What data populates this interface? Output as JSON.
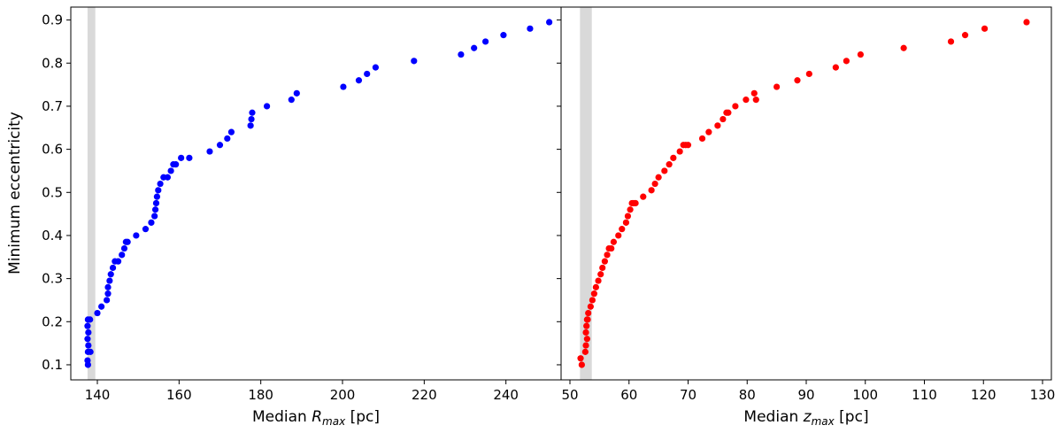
{
  "ylabel": "Minimum eccentricity",
  "chart_data": [
    {
      "type": "scatter",
      "xlabel_prefix": "Median ",
      "xlabel_symbol": "R",
      "xlabel_subscript": "max",
      "xlabel_suffix": " [pc]",
      "ylabel": "Minimum eccentricity",
      "xlim": [
        133.5,
        253.5
      ],
      "ylim": [
        0.065,
        0.93
      ],
      "xticks": [
        140,
        160,
        180,
        200,
        220,
        240
      ],
      "yticks": [
        0.1,
        0.2,
        0.3,
        0.4,
        0.5,
        0.6,
        0.7,
        0.8,
        0.9
      ],
      "band": [
        137.6,
        139.5
      ],
      "band_color": "#d9d9d9",
      "marker_color": "#0000ff",
      "grid": false,
      "x": [
        137.7,
        137.6,
        137.7,
        138.3,
        137.8,
        137.6,
        137.8,
        137.6,
        137.7,
        138.2,
        140.0,
        141.0,
        142.3,
        142.6,
        142.6,
        143.0,
        143.3,
        143.8,
        144.3,
        145.1,
        146.0,
        146.6,
        147.0,
        147.4,
        149.5,
        151.8,
        153.2,
        154.0,
        154.2,
        154.4,
        154.6,
        154.9,
        155.4,
        156.2,
        157.2,
        158.0,
        158.6,
        159.2,
        160.5,
        162.5,
        167.5,
        170.0,
        171.8,
        172.8,
        177.5,
        177.7,
        177.9,
        181.5,
        187.5,
        188.8,
        200.2,
        204.0,
        206.0,
        208.1,
        217.5,
        229.0,
        232.2,
        235.0,
        239.4,
        245.9,
        250.6
      ],
      "y": [
        0.1,
        0.11,
        0.13,
        0.13,
        0.145,
        0.16,
        0.175,
        0.19,
        0.205,
        0.205,
        0.22,
        0.235,
        0.25,
        0.265,
        0.28,
        0.295,
        0.31,
        0.325,
        0.34,
        0.34,
        0.355,
        0.37,
        0.385,
        0.385,
        0.4,
        0.415,
        0.43,
        0.445,
        0.46,
        0.475,
        0.49,
        0.505,
        0.52,
        0.535,
        0.535,
        0.55,
        0.565,
        0.565,
        0.58,
        0.58,
        0.595,
        0.61,
        0.625,
        0.64,
        0.655,
        0.67,
        0.685,
        0.7,
        0.715,
        0.73,
        0.745,
        0.76,
        0.775,
        0.79,
        0.805,
        0.82,
        0.835,
        0.85,
        0.865,
        0.88,
        0.895
      ]
    },
    {
      "type": "scatter",
      "xlabel_prefix": "Median ",
      "xlabel_symbol": "z",
      "xlabel_subscript": "max",
      "xlabel_suffix": " [pc]",
      "ylabel": "",
      "xlim": [
        48.5,
        131.5
      ],
      "ylim": [
        0.065,
        0.93
      ],
      "xticks": [
        50,
        60,
        70,
        80,
        90,
        100,
        110,
        120,
        130
      ],
      "yticks": [
        0.1,
        0.2,
        0.3,
        0.4,
        0.5,
        0.6,
        0.7,
        0.8,
        0.9
      ],
      "band": [
        51.7,
        53.7
      ],
      "band_color": "#d9d9d9",
      "marker_color": "#ff0000",
      "grid": false,
      "x": [
        52.0,
        51.8,
        52.6,
        52.7,
        52.9,
        52.7,
        52.8,
        52.9,
        53.0,
        53.1,
        53.5,
        53.8,
        54.1,
        54.4,
        54.8,
        55.2,
        55.5,
        55.9,
        56.3,
        56.6,
        57.0,
        57.4,
        58.2,
        58.8,
        59.5,
        59.8,
        60.2,
        60.5,
        60.7,
        61.0,
        61.1,
        62.4,
        63.8,
        64.4,
        65.0,
        66.0,
        66.8,
        67.5,
        68.6,
        69.2,
        69.6,
        70.0,
        72.4,
        73.5,
        75.0,
        75.9,
        76.5,
        76.8,
        78.0,
        79.8,
        81.5,
        81.2,
        85.0,
        88.5,
        90.5,
        95.0,
        96.8,
        99.2,
        106.5,
        114.5,
        116.9,
        120.2,
        127.3
      ],
      "y": [
        0.1,
        0.115,
        0.13,
        0.145,
        0.16,
        0.175,
        0.19,
        0.205,
        0.205,
        0.22,
        0.235,
        0.25,
        0.265,
        0.28,
        0.295,
        0.31,
        0.325,
        0.34,
        0.355,
        0.37,
        0.37,
        0.385,
        0.4,
        0.415,
        0.43,
        0.445,
        0.46,
        0.475,
        0.475,
        0.475,
        0.475,
        0.49,
        0.505,
        0.52,
        0.535,
        0.55,
        0.565,
        0.58,
        0.595,
        0.61,
        0.61,
        0.61,
        0.625,
        0.64,
        0.655,
        0.67,
        0.685,
        0.685,
        0.7,
        0.715,
        0.715,
        0.73,
        0.745,
        0.76,
        0.775,
        0.79,
        0.805,
        0.82,
        0.835,
        0.85,
        0.865,
        0.88,
        0.895
      ]
    }
  ]
}
